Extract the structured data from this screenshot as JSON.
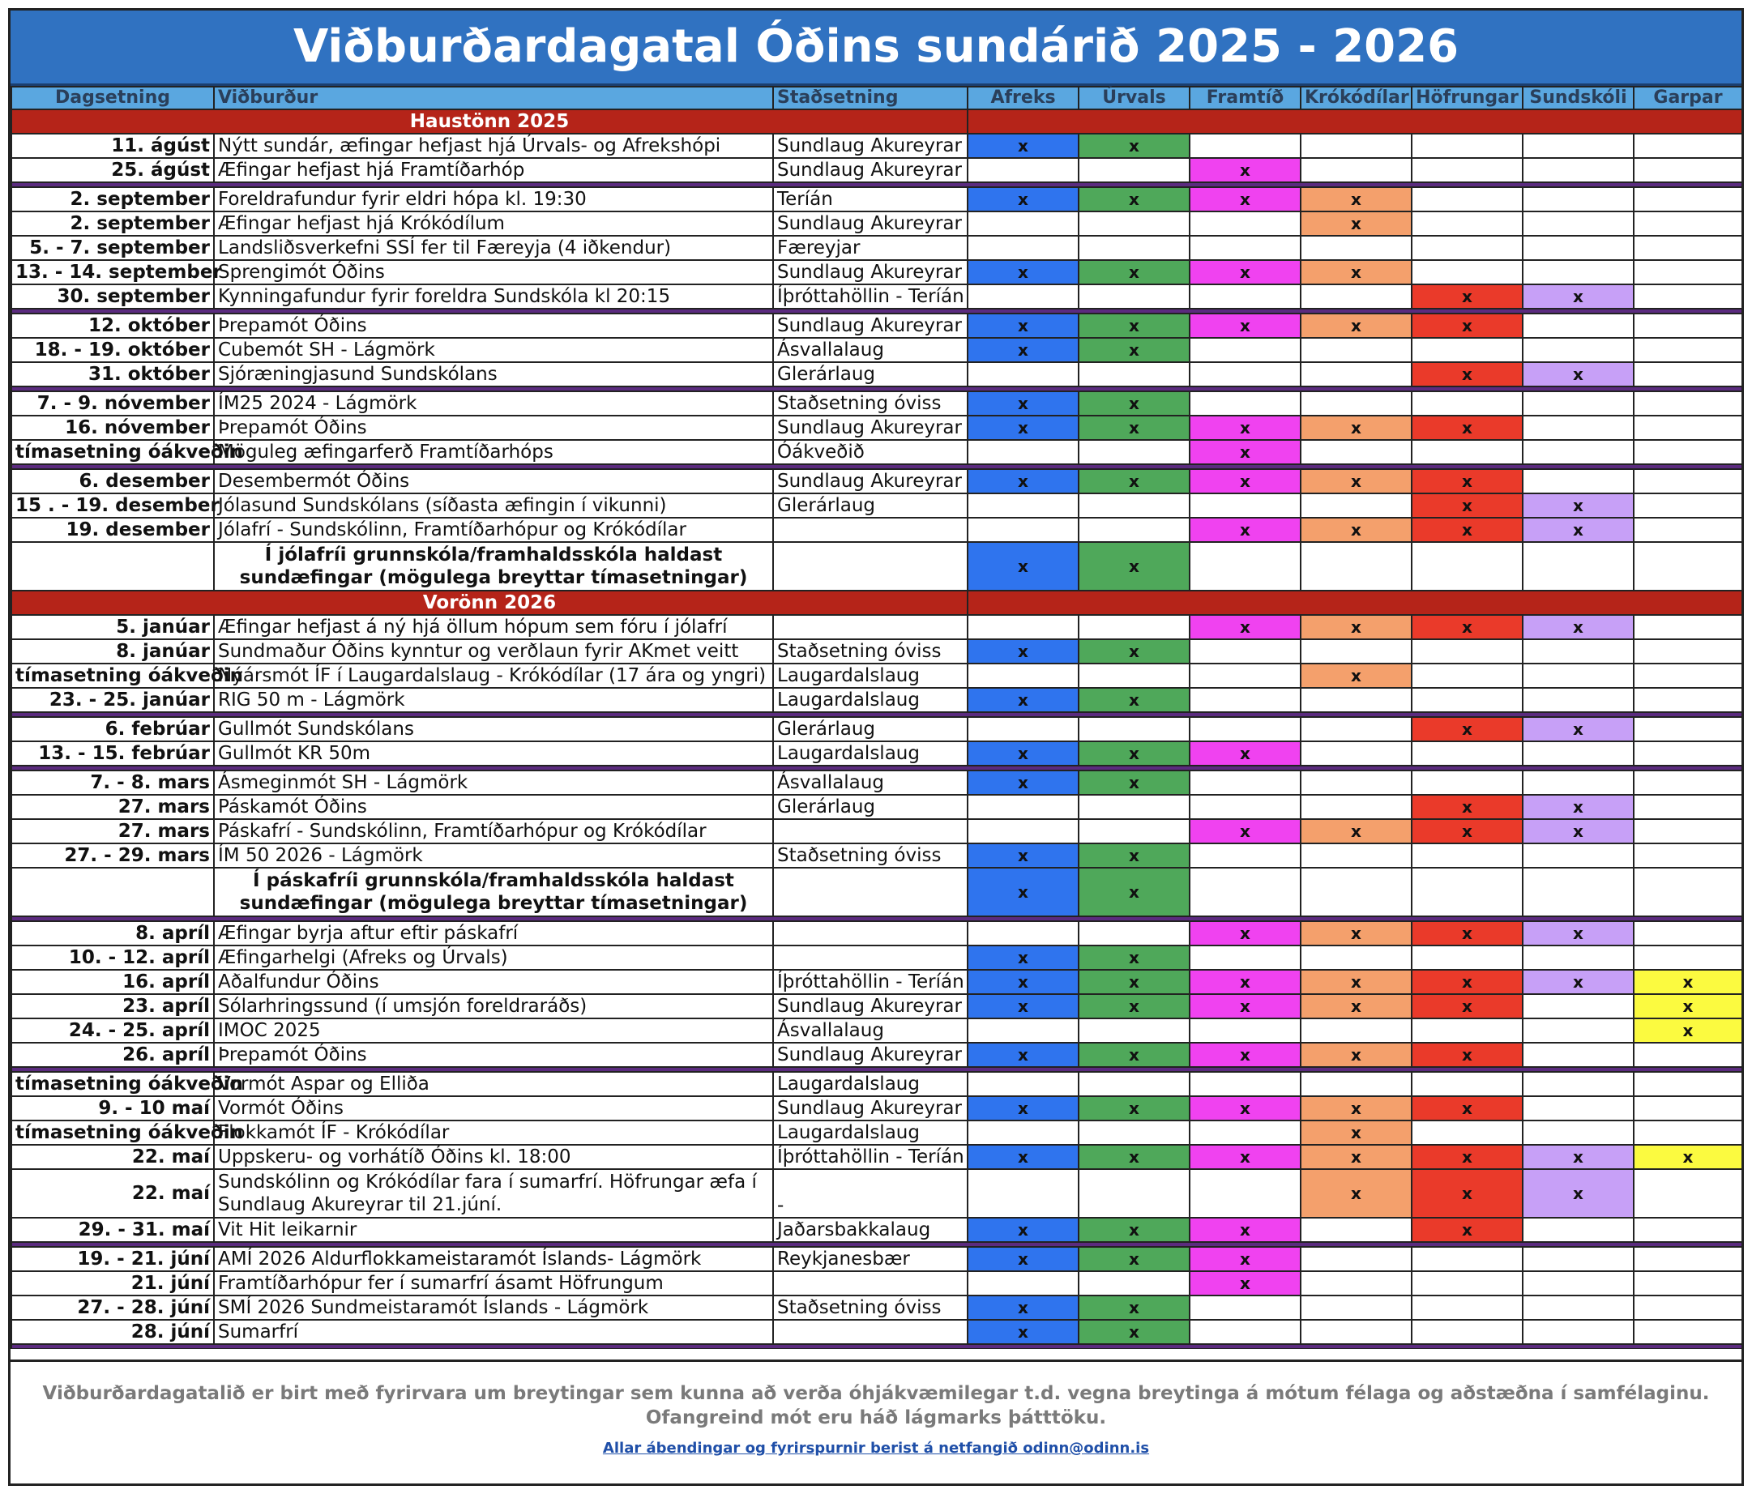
{
  "title": "Viðburðardagatal Óðins sundárið 2025 - 2026",
  "headers": [
    "Dagsetning",
    "Viðburður",
    "Staðsetning",
    "Afreks",
    "Úrvals",
    "Framtíð",
    "Krókódílar",
    "Höfrungar",
    "Sundskóli",
    "Garpar"
  ],
  "group_colors": [
    "#2f74ee",
    "#4fa85a",
    "#f042f0",
    "#f4a06c",
    "#ea3a2a",
    "#c7a0f7",
    "#fbfa40"
  ],
  "rows": [
    {
      "type": "semester",
      "label": "Haustönn 2025"
    },
    {
      "date": "11. ágúst",
      "event": "Nýtt sundár, æfingar hefjast hjá Úrvals- og Afrekshópi",
      "place": "Sundlaug Akureyrar",
      "marks": [
        1,
        1,
        0,
        0,
        0,
        0,
        0
      ]
    },
    {
      "date": "25. ágúst",
      "event": "Æfingar hefjast hjá Framtíðarhóp",
      "place": "Sundlaug Akureyrar",
      "marks": [
        0,
        0,
        1,
        0,
        0,
        0,
        0
      ]
    },
    {
      "type": "sep"
    },
    {
      "date": "2. september",
      "event": "Foreldrafundur fyrir eldri hópa kl. 19:30",
      "place": "Teríán",
      "marks": [
        1,
        1,
        1,
        1,
        0,
        0,
        0
      ]
    },
    {
      "date": "2. september",
      "event": "Æfingar hefjast hjá Krókódílum",
      "place": "Sundlaug Akureyrar",
      "marks": [
        0,
        0,
        0,
        1,
        0,
        0,
        0
      ]
    },
    {
      "date": "5. - 7. september",
      "event": "Landsliðsverkefni SSÍ fer til Færeyja (4 iðkendur)",
      "place": "Færeyjar",
      "marks": [
        0,
        0,
        0,
        0,
        0,
        0,
        0
      ]
    },
    {
      "date": "13. - 14. september",
      "event": "Sprengimót Óðins",
      "place": "Sundlaug Akureyrar",
      "marks": [
        1,
        1,
        1,
        1,
        0,
        0,
        0
      ]
    },
    {
      "date": "30. september",
      "event": "Kynningafundur fyrir foreldra Sundskóla kl 20:15",
      "place": "Íþróttahöllin - Teríán",
      "marks": [
        0,
        0,
        0,
        0,
        1,
        1,
        0
      ]
    },
    {
      "type": "sep"
    },
    {
      "date": "12. október",
      "event": "Þrepamót Óðins",
      "place": "Sundlaug Akureyrar",
      "marks": [
        1,
        1,
        1,
        1,
        1,
        0,
        0
      ]
    },
    {
      "date": "18. - 19. október",
      "event": "Cubemót SH - Lágmörk",
      "place": "Ásvallalaug",
      "marks": [
        1,
        1,
        0,
        0,
        0,
        0,
        0
      ]
    },
    {
      "date": "31. október",
      "event": "Sjóræningjasund Sundskólans",
      "place": "Glerárlaug",
      "marks": [
        0,
        0,
        0,
        0,
        1,
        1,
        0
      ]
    },
    {
      "type": "sep"
    },
    {
      "date": "7. - 9. nóvember",
      "event": "ÍM25 2024 - Lágmörk",
      "place": "Staðsetning óviss",
      "marks": [
        1,
        1,
        0,
        0,
        0,
        0,
        0
      ]
    },
    {
      "date": "16. nóvember",
      "event": "Þrepamót Óðins",
      "place": "Sundlaug Akureyrar",
      "marks": [
        1,
        1,
        1,
        1,
        1,
        0,
        0
      ]
    },
    {
      "date": "tímasetning óákveðin",
      "event": "Möguleg æfingarferð Framtíðarhóps",
      "place": "Óákveðið",
      "marks": [
        0,
        0,
        1,
        0,
        0,
        0,
        0
      ]
    },
    {
      "type": "sep"
    },
    {
      "date": "6. desember",
      "event": "Desembermót Óðins",
      "place": "Sundlaug Akureyrar",
      "marks": [
        1,
        1,
        1,
        1,
        1,
        0,
        0
      ]
    },
    {
      "date": "15 . - 19. desember",
      "event": "Jólasund Sundskólans (síðasta æfingin í vikunni)",
      "place": "Glerárlaug",
      "marks": [
        0,
        0,
        0,
        0,
        1,
        1,
        0
      ]
    },
    {
      "date": "19. desember",
      "event": "Jólafrí - Sundskólinn, Framtíðarhópur og Krókódílar",
      "place": "",
      "marks": [
        0,
        0,
        1,
        1,
        1,
        1,
        0
      ]
    },
    {
      "type": "tall",
      "date": "",
      "event": "Í jólafríi grunnskóla/framhaldsskóla haldast sundæfingar (mögulega breyttar tímasetningar)",
      "place": "",
      "marks": [
        1,
        1,
        0,
        0,
        0,
        0,
        0
      ]
    },
    {
      "type": "semester",
      "label": "Vorönn 2026"
    },
    {
      "date": "5. janúar",
      "event": "Æfingar hefjast á ný hjá öllum hópum sem fóru í jólafrí",
      "place": "",
      "marks": [
        0,
        0,
        1,
        1,
        1,
        1,
        0
      ]
    },
    {
      "date": "8. janúar",
      "event": "Sundmaður Óðins kynntur og verðlaun fyrir AKmet veitt",
      "place": "Staðsetning óviss",
      "marks": [
        1,
        1,
        0,
        0,
        0,
        0,
        0
      ]
    },
    {
      "date": "tímasetning óákveðin",
      "event": "Nýársmót ÍF í Laugardalslaug - Krókódílar (17 ára og yngri)",
      "place": "Laugardalslaug",
      "marks": [
        0,
        0,
        0,
        1,
        0,
        0,
        0
      ]
    },
    {
      "date": "23. - 25. janúar",
      "event": "RIG  50 m - Lágmörk",
      "place": "Laugardalslaug",
      "marks": [
        1,
        1,
        0,
        0,
        0,
        0,
        0
      ]
    },
    {
      "type": "sep"
    },
    {
      "date": "6. febrúar",
      "event": "Gullmót Sundskólans",
      "place": "Glerárlaug",
      "marks": [
        0,
        0,
        0,
        0,
        1,
        1,
        0
      ]
    },
    {
      "date": "13. - 15. febrúar",
      "event": "Gullmót KR 50m",
      "place": "Laugardalslaug",
      "marks": [
        1,
        1,
        1,
        0,
        0,
        0,
        0
      ]
    },
    {
      "type": "sep"
    },
    {
      "date": "7. - 8. mars",
      "event": "Ásmeginmót SH - Lágmörk",
      "place": "Ásvallalaug",
      "marks": [
        1,
        1,
        0,
        0,
        0,
        0,
        0
      ]
    },
    {
      "date": "27. mars",
      "event": "Páskamót Óðins",
      "place": "Glerárlaug",
      "marks": [
        0,
        0,
        0,
        0,
        1,
        1,
        0
      ]
    },
    {
      "date": "27. mars",
      "event": "Páskafrí - Sundskólinn, Framtíðarhópur og Krókódílar",
      "place": "",
      "marks": [
        0,
        0,
        1,
        1,
        1,
        1,
        0
      ]
    },
    {
      "date": "27. - 29. mars",
      "event": "ÍM 50 2026 - Lágmörk",
      "place": "Staðsetning óviss",
      "marks": [
        1,
        1,
        0,
        0,
        0,
        0,
        0
      ]
    },
    {
      "type": "tall",
      "date": "",
      "event": "Í páskafríi grunnskóla/framhaldsskóla haldast sundæfingar (mögulega breyttar tímasetningar)",
      "place": "",
      "marks": [
        1,
        1,
        0,
        0,
        0,
        0,
        0
      ]
    },
    {
      "type": "sep"
    },
    {
      "date": "8. apríl",
      "event": "Æfingar byrja aftur eftir páskafrí",
      "place": "",
      "marks": [
        0,
        0,
        1,
        1,
        1,
        1,
        0
      ]
    },
    {
      "date": "10. - 12. apríl",
      "event": "Æfingarhelgi (Afreks og Úrvals)",
      "place": "",
      "marks": [
        1,
        1,
        0,
        0,
        0,
        0,
        0
      ]
    },
    {
      "date": "16. apríl",
      "event": "Aðalfundur Óðins",
      "place": "Íþróttahöllin - Teríán",
      "marks": [
        1,
        1,
        1,
        1,
        1,
        1,
        1
      ]
    },
    {
      "date": "23. apríl",
      "event": "Sólarhringssund  (í umsjón foreldraráðs)",
      "place": "Sundlaug Akureyrar",
      "marks": [
        1,
        1,
        1,
        1,
        1,
        0,
        1
      ]
    },
    {
      "date": "24. - 25. apríl",
      "event": "IMOC 2025",
      "place": "Ásvallalaug",
      "marks": [
        0,
        0,
        0,
        0,
        0,
        0,
        1
      ]
    },
    {
      "date": "26. apríl",
      "event": "Þrepamót Óðins",
      "place": "Sundlaug Akureyrar",
      "marks": [
        1,
        1,
        1,
        1,
        1,
        0,
        0
      ]
    },
    {
      "type": "sep"
    },
    {
      "date": "tímasetning óákveðin",
      "event": "Vormót Aspar og Elliða",
      "place": "Laugardalslaug",
      "marks": [
        0,
        0,
        0,
        0,
        0,
        0,
        0
      ]
    },
    {
      "date": "9. - 10 maí",
      "event": "Vormót Óðins",
      "place": "Sundlaug Akureyrar",
      "marks": [
        1,
        1,
        1,
        1,
        1,
        0,
        0
      ]
    },
    {
      "date": "tímasetning óákveðin",
      "event": "Flokkamót ÍF - Krókódílar",
      "place": "Laugardalslaug",
      "marks": [
        0,
        0,
        0,
        1,
        0,
        0,
        0
      ]
    },
    {
      "date": "22. maí",
      "event": "Uppskeru- og vorhátíð Óðins kl. 18:00",
      "place": "Íþróttahöllin - Teríán",
      "marks": [
        1,
        1,
        1,
        1,
        1,
        1,
        1
      ]
    },
    {
      "type": "tall",
      "date": "22. maí",
      "event": "Sundskólinn og Krókódílar fara í sumarfrí. Höfrungar æfa í Sundlaug Akureyrar til 21.júní.",
      "place": "-",
      "marks": [
        0,
        0,
        0,
        1,
        1,
        1,
        0
      ]
    },
    {
      "date": "29. - 31. maí",
      "event": "Vit Hit leikarnir",
      "place": "Jaðarsbakkalaug",
      "marks": [
        1,
        1,
        1,
        0,
        1,
        0,
        0
      ]
    },
    {
      "type": "sep"
    },
    {
      "date": "19. - 21. júní",
      "event": "AMÍ 2026 Aldurflokkameistaramót Íslands- Lágmörk",
      "place": "Reykjanesbær",
      "marks": [
        1,
        1,
        1,
        0,
        0,
        0,
        0
      ]
    },
    {
      "date": "21. júní",
      "event": "Framtíðarhópur fer í sumarfrí ásamt Höfrungum",
      "place": "",
      "marks": [
        0,
        0,
        1,
        0,
        0,
        0,
        0
      ]
    },
    {
      "date": "27. - 28. júní",
      "event": "SMÍ 2026 Sundmeistaramót Íslands - Lágmörk",
      "place": "Staðsetning óviss",
      "marks": [
        1,
        1,
        0,
        0,
        0,
        0,
        0
      ]
    },
    {
      "date": "28. júní",
      "event": "Sumarfrí",
      "place": "",
      "marks": [
        1,
        1,
        0,
        0,
        0,
        0,
        0
      ]
    },
    {
      "type": "sep"
    }
  ],
  "mark_symbol": "x",
  "footer": {
    "line1": "Viðburðardagatalið er birt með fyrirvara um breytingar sem kunna að verða óhjákvæmilegar t.d. vegna breytinga á mótum félaga og aðstæðna í samfélaginu.",
    "line2": "Ofangreind mót eru háð lágmarks þátttöku.",
    "contact": "Allar ábendingar og fyrirspurnir berist á netfangið odinn@odinn.is"
  }
}
